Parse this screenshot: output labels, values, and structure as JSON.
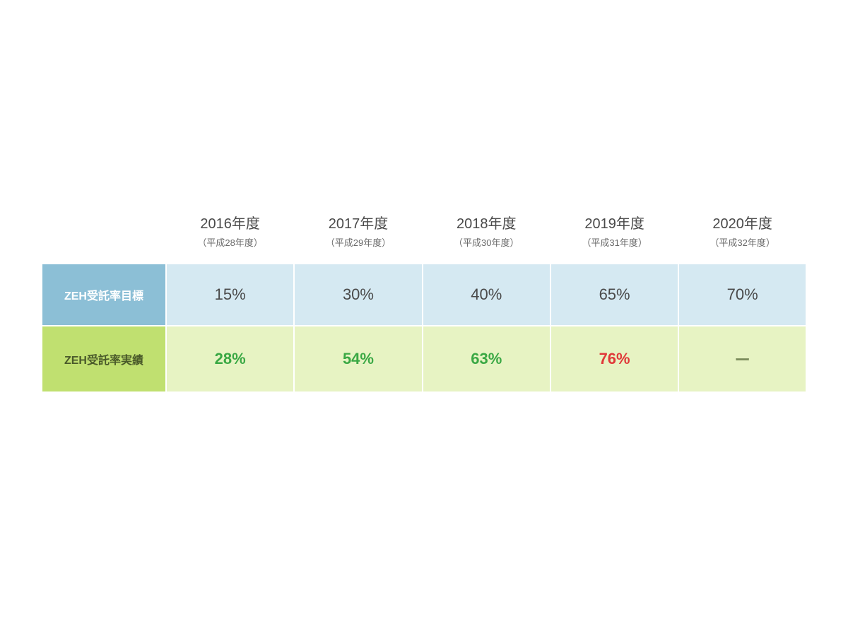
{
  "table": {
    "type": "table",
    "columns": [
      {
        "year_main": "2016年度",
        "year_sub": "（平成28年度）"
      },
      {
        "year_main": "2017年度",
        "year_sub": "（平成29年度）"
      },
      {
        "year_main": "2018年度",
        "year_sub": "（平成30年度）"
      },
      {
        "year_main": "2019年度",
        "year_sub": "（平成31年度）"
      },
      {
        "year_main": "2020年度",
        "year_sub": "（平成32年度）"
      }
    ],
    "rows": {
      "target": {
        "label": "ZEH受託率目標",
        "values": [
          "15%",
          "30%",
          "40%",
          "65%",
          "70%"
        ],
        "header_bg": "#8cbfd6",
        "header_color": "#ffffff",
        "cell_bg": "#d5e9f2",
        "cell_color": "#4a4a4a"
      },
      "actual": {
        "label": "ZEH受託率実績",
        "values": [
          "28%",
          "54%",
          "63%",
          "76%",
          "ー"
        ],
        "value_colors": [
          "green",
          "green",
          "green",
          "red",
          "dash"
        ],
        "header_bg": "#c0e070",
        "header_color": "#4a5a2a",
        "cell_bg": "#e7f3c3"
      }
    },
    "colors": {
      "green": "#3aa844",
      "red": "#e03838",
      "dash": "#7a8a5a",
      "background": "#ffffff",
      "border": "#ffffff"
    },
    "fontsize": {
      "year_main": 20,
      "year_sub": 13,
      "row_label": 16,
      "cell_value": 22
    }
  }
}
